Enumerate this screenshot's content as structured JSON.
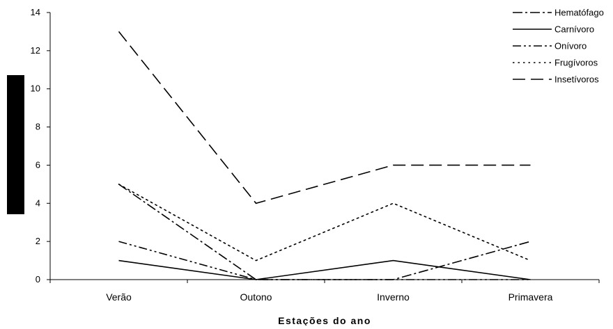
{
  "chart_data": {
    "type": "line",
    "title": "",
    "xlabel": "Estações do ano",
    "ylabel": "",
    "categories": [
      "Verão",
      "Outono",
      "Inverno",
      "Primavera"
    ],
    "ylim": [
      0,
      14
    ],
    "yticks": [
      0,
      2,
      4,
      6,
      8,
      10,
      12,
      14
    ],
    "grid": false,
    "legend_position": "top-right",
    "series": [
      {
        "name": "Hematófago",
        "values": [
          5,
          0,
          0,
          2
        ],
        "dash": "dash-dot",
        "color": "#000000"
      },
      {
        "name": "Carnívoro",
        "values": [
          1,
          0,
          1,
          0
        ],
        "dash": "solid",
        "color": "#000000"
      },
      {
        "name": "Onívoro",
        "values": [
          2,
          0,
          0,
          0
        ],
        "dash": "dash-dot-dot",
        "color": "#000000"
      },
      {
        "name": "Frugívoros",
        "values": [
          5,
          1,
          4,
          1
        ],
        "dash": "dotted",
        "color": "#000000"
      },
      {
        "name": "Insetívoros",
        "values": [
          13,
          4,
          6,
          6
        ],
        "dash": "long-dash",
        "color": "#000000"
      }
    ]
  }
}
